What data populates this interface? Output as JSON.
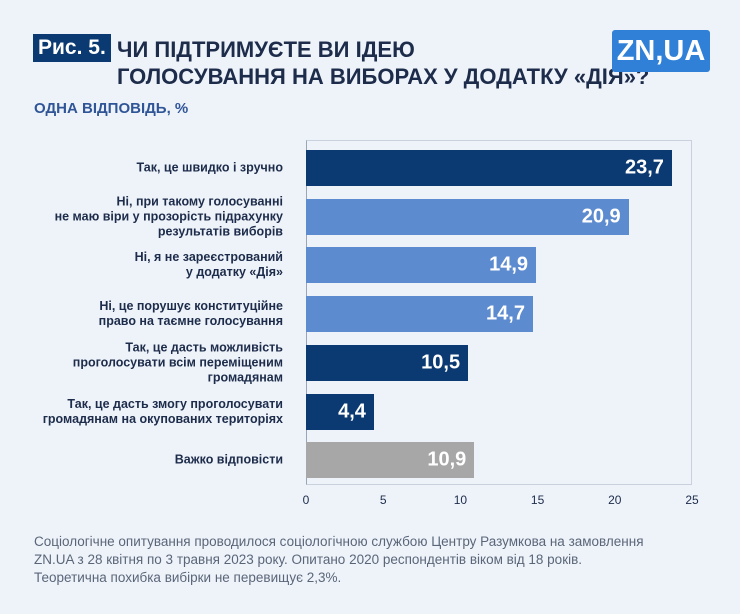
{
  "chart_data": {
    "type": "bar",
    "orientation": "horizontal",
    "figure_label": "Рис. 5.",
    "title": "ЧИ ПІДТРИМУЄТЕ ВИ ІДЕЮ\nГОЛОСУВАННЯ НА ВИБОРАХ У ДОДАТКУ «ДІЯ»?",
    "subtitle": "ОДНА ВІДПОВІДЬ, %",
    "logo": "ZN,UA",
    "categories": [
      "Так, це швидко і зручно",
      "Ні, при такому голосуванні\nне маю віри у прозорість підрахунку\nрезультатів виборів",
      "Ні, я не зареєстрований\nу додатку «Дія»",
      "Ні, це порушує конституційне\nправо на таємне голосування",
      "Так, це дасть можливість\nпроголосувати всім переміщеним\nгромадянам",
      "Так, це дасть змогу проголосувати\nгромадянам на окупованих територіях",
      "Важко відповісти"
    ],
    "values": [
      23.7,
      20.9,
      14.9,
      14.7,
      10.5,
      4.4,
      10.9
    ],
    "value_labels": [
      "23,7",
      "20,9",
      "14,9",
      "14,7",
      "10,5",
      "4,4",
      "10,9"
    ],
    "colors": [
      "#0b3a72",
      "#5d8bcf",
      "#5d8bcf",
      "#5d8bcf",
      "#0b3a72",
      "#0b3a72",
      "#a7a7a7"
    ],
    "xlim": [
      0,
      25
    ],
    "xticks": [
      0,
      5,
      10,
      15,
      20,
      25
    ],
    "note": "Соціологічне опитування проводилося соціологічною  службою Центру Разумкова на замовлення\nZN.UA з 28 квітня по 3 травня 2023 року. Опитано 2020 респондентів віком від 18 років.\nТеоретична похибка вибірки не перевищує 2,3%."
  }
}
